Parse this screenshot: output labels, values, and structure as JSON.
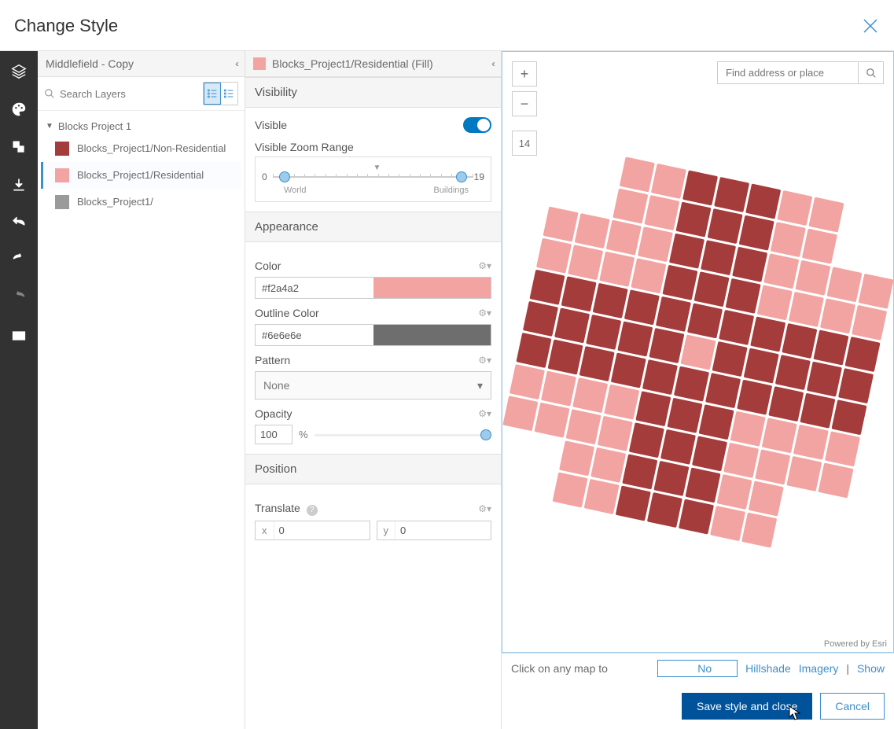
{
  "modal": {
    "title": "Change Style"
  },
  "layers_panel": {
    "header": "Middlefield - Copy",
    "search_placeholder": "Search Layers",
    "group": "Blocks Project 1",
    "items": [
      {
        "label": "Blocks_Project1/Non-Residential",
        "color": "#a53c3c"
      },
      {
        "label": "Blocks_Project1/Residential",
        "color": "#f2a4a2",
        "selected": true
      },
      {
        "label": "Blocks_Project1/",
        "color": "#9a9a9a"
      }
    ]
  },
  "props": {
    "header": "Blocks_Project1/Residential (Fill)",
    "header_color": "#f2a4a2",
    "visibility": {
      "section": "Visibility",
      "visible_label": "Visible",
      "visible": true,
      "zoom_label": "Visible Zoom Range",
      "min": "0",
      "min_sub": "World",
      "max": "19",
      "max_sub": "Buildings"
    },
    "appearance": {
      "section": "Appearance",
      "color_label": "Color",
      "color_value": "#f2a4a2",
      "outline_label": "Outline Color",
      "outline_value": "#6e6e6e",
      "pattern_label": "Pattern",
      "pattern_value": "None",
      "opacity_label": "Opacity",
      "opacity_value": "100",
      "opacity_unit": "%"
    },
    "position": {
      "section": "Position",
      "translate_label": "Translate",
      "x_label": "x",
      "x_value": "0",
      "y_label": "y",
      "y_value": "0"
    }
  },
  "map": {
    "zoom_level": "14",
    "search_placeholder": "Find address or place",
    "attribution": "Powered by Esri",
    "colors": {
      "residential": "#f2a4a2",
      "nonres": "#a53c3c"
    },
    "basemap_bar": {
      "prompt": "Click on any map to",
      "no": "No",
      "hillshade": "Hillshade",
      "imagery": "Imagery",
      "show": "Show"
    }
  },
  "footer": {
    "save": "Save style and close",
    "cancel": "Cancel"
  }
}
